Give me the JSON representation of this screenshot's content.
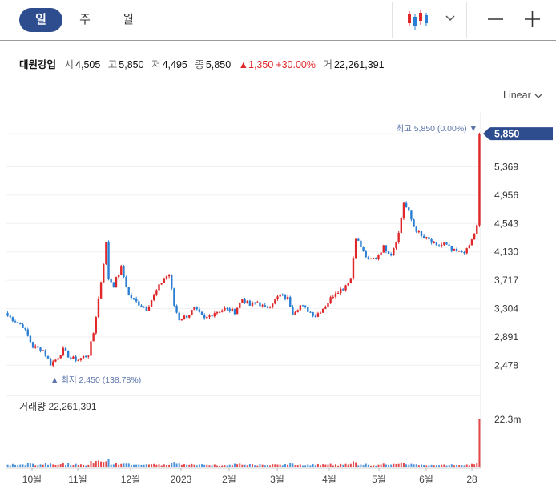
{
  "tabs": [
    {
      "label": "일",
      "active": true
    },
    {
      "label": "주",
      "active": false
    },
    {
      "label": "월",
      "active": false
    }
  ],
  "toolbar": {
    "chart_type_icon": "candlestick-chart-icon",
    "dropdown_icon": "chevron-down-icon",
    "zoom_out_icon": "minus-icon",
    "zoom_in_icon": "plus-icon"
  },
  "summary": {
    "name": "대원강업",
    "open_label": "시",
    "open": "4,505",
    "high_label": "고",
    "high": "5,850",
    "low_label": "저",
    "low": "4,495",
    "close_label": "종",
    "close": "5,850",
    "change": "▲1,350",
    "change_pct": "+30.00%",
    "volume_label": "거",
    "volume": "22,261,391"
  },
  "scale_mode": "Linear",
  "colors": {
    "up": "#e0282b",
    "down": "#2a7fd4",
    "accent": "#2e4d8f",
    "annotation": "#5b74ab"
  },
  "chart_data": {
    "type": "candlestick",
    "y_ticks": [
      "5,850",
      "5,369",
      "4,956",
      "4,543",
      "4,130",
      "3,717",
      "3,304",
      "2,891",
      "2,478"
    ],
    "ylim": [
      2180,
      6050
    ],
    "x_labels": [
      "10월",
      "11월",
      "12월",
      "2023",
      "2월",
      "3월",
      "4월",
      "5월",
      "6월",
      "28"
    ],
    "current_price": "5,850",
    "high_annotation": {
      "label": "최고",
      "value": "5,850",
      "pct": "(0.00%)"
    },
    "low_annotation": {
      "label": "최저",
      "value": "2,450",
      "pct": "(138.78%)"
    },
    "volume_label": "거래량",
    "volume_value": "22,261,391",
    "volume_axis_max": "22.3m",
    "keypoints": [
      [
        0,
        3200
      ],
      [
        6,
        3050
      ],
      [
        10,
        2750
      ],
      [
        14,
        2700
      ],
      [
        17,
        2500
      ],
      [
        19,
        2560
      ],
      [
        22,
        2700
      ],
      [
        25,
        2580
      ],
      [
        28,
        2560
      ],
      [
        32,
        2640
      ],
      [
        34,
        2950
      ],
      [
        37,
        3700
      ],
      [
        39,
        4250
      ],
      [
        40,
        3750
      ],
      [
        42,
        3650
      ],
      [
        45,
        3900
      ],
      [
        48,
        3500
      ],
      [
        51,
        3400
      ],
      [
        55,
        3300
      ],
      [
        58,
        3500
      ],
      [
        62,
        3750
      ],
      [
        64,
        3800
      ],
      [
        66,
        3350
      ],
      [
        68,
        3150
      ],
      [
        71,
        3200
      ],
      [
        74,
        3300
      ],
      [
        78,
        3150
      ],
      [
        82,
        3250
      ],
      [
        86,
        3300
      ],
      [
        90,
        3260
      ],
      [
        93,
        3450
      ],
      [
        96,
        3350
      ],
      [
        99,
        3400
      ],
      [
        102,
        3300
      ],
      [
        105,
        3400
      ],
      [
        108,
        3500
      ],
      [
        111,
        3450
      ],
      [
        113,
        3250
      ],
      [
        116,
        3350
      ],
      [
        119,
        3280
      ],
      [
        122,
        3200
      ],
      [
        126,
        3350
      ],
      [
        130,
        3550
      ],
      [
        133,
        3600
      ],
      [
        136,
        3750
      ],
      [
        138,
        4350
      ],
      [
        140,
        4200
      ],
      [
        143,
        4000
      ],
      [
        146,
        4050
      ],
      [
        149,
        4200
      ],
      [
        152,
        4100
      ],
      [
        155,
        4400
      ],
      [
        157,
        4850
      ],
      [
        159,
        4700
      ],
      [
        161,
        4500
      ],
      [
        164,
        4350
      ],
      [
        167,
        4300
      ],
      [
        170,
        4200
      ],
      [
        173,
        4250
      ],
      [
        176,
        4150
      ],
      [
        179,
        4120
      ],
      [
        182,
        4150
      ],
      [
        184,
        4300
      ],
      [
        186,
        4500
      ],
      [
        187,
        5850
      ]
    ]
  }
}
